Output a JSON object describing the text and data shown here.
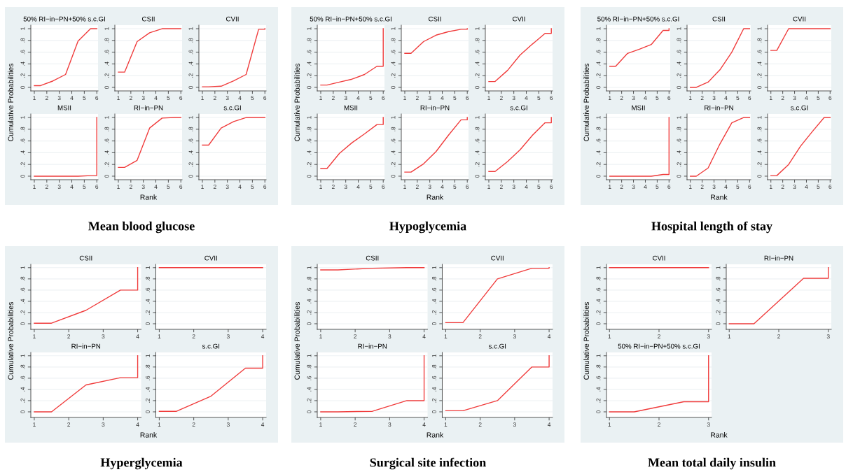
{
  "chart_data": [
    {
      "type": "line",
      "title": "50% RI−in−PN+50% s.c.GI",
      "ylabel": "Cumulative Probabilities",
      "xlabel": "Rank",
      "annotations": [
        "Mean blood glucose"
      ],
      "x": [
        1,
        1.5,
        2.5,
        3.5,
        4.5,
        5.5,
        6,
        6
      ],
      "values": [
        0.03,
        0.03,
        0.11,
        0.22,
        0.79,
        1.0,
        1.0,
        1.0
      ],
      "color": "#f03c3c",
      "xlim": [
        0.72,
        6.1
      ],
      "xticks": [
        1,
        2,
        3,
        4,
        5,
        6
      ],
      "ylim": [
        -0.06,
        1.06
      ],
      "yticks": [
        0,
        {
          "value": 0.2,
          "label": ".2"
        },
        {
          "value": 0.4,
          "label": ".4"
        },
        {
          "value": 0.6,
          "label": ".6"
        },
        {
          "value": 0.8,
          "label": ".8"
        },
        1
      ],
      "grid": "y"
    },
    {
      "type": "line",
      "title": "CSII",
      "x": [
        1,
        1.5,
        2.5,
        3.5,
        4.5,
        5.5,
        6,
        6
      ],
      "values": [
        0.26,
        0.26,
        0.78,
        0.93,
        1.0,
        1.0,
        1.0,
        1.0
      ],
      "color": "#f03c3c",
      "xlim": [
        0.72,
        6.1
      ],
      "xticks": [
        1,
        2,
        3,
        4,
        5,
        6
      ],
      "ylim": [
        -0.06,
        1.06
      ],
      "yticks": [
        0,
        {
          "value": 0.2,
          "label": ".2"
        },
        {
          "value": 0.4,
          "label": ".4"
        },
        {
          "value": 0.6,
          "label": ".6"
        },
        {
          "value": 0.8,
          "label": ".8"
        },
        1
      ],
      "grid": "y"
    },
    {
      "type": "line",
      "title": "CVII",
      "x": [
        1,
        1.5,
        2.5,
        3.5,
        4.5,
        5.5,
        6,
        6
      ],
      "values": [
        0.01,
        0.01,
        0.02,
        0.11,
        0.22,
        0.99,
        0.99,
        1.0
      ],
      "color": "#f03c3c",
      "xlim": [
        0.72,
        6.1
      ],
      "xticks": [
        1,
        2,
        3,
        4,
        5,
        6
      ],
      "ylim": [
        -0.06,
        1.06
      ],
      "yticks": [
        0,
        {
          "value": 0.2,
          "label": ".2"
        },
        {
          "value": 0.4,
          "label": ".4"
        },
        {
          "value": 0.6,
          "label": ".6"
        },
        {
          "value": 0.8,
          "label": ".8"
        },
        1
      ],
      "grid": "y"
    },
    {
      "type": "line",
      "title": "MSII",
      "x": [
        1,
        1.5,
        2.5,
        3.5,
        4.5,
        5.5,
        6,
        6
      ],
      "values": [
        0,
        0,
        0,
        0,
        0,
        0.01,
        0.01,
        1.0
      ],
      "color": "#f03c3c",
      "xlim": [
        0.72,
        6.1
      ],
      "xticks": [
        1,
        2,
        3,
        4,
        5,
        6
      ],
      "ylim": [
        -0.06,
        1.06
      ],
      "yticks": [
        0,
        {
          "value": 0.2,
          "label": ".2"
        },
        {
          "value": 0.4,
          "label": ".4"
        },
        {
          "value": 0.6,
          "label": ".6"
        },
        {
          "value": 0.8,
          "label": ".8"
        },
        1
      ],
      "grid": "y"
    },
    {
      "type": "line",
      "title": "RI−in−PN",
      "x": [
        1,
        1.5,
        2.5,
        3.5,
        4.5,
        5.5,
        6,
        6
      ],
      "values": [
        0.15,
        0.15,
        0.27,
        0.82,
        0.99,
        1.0,
        1.0,
        1.0
      ],
      "color": "#f03c3c",
      "xlim": [
        0.72,
        6.1
      ],
      "xticks": [
        1,
        2,
        3,
        4,
        5,
        6
      ],
      "ylim": [
        -0.06,
        1.06
      ],
      "yticks": [
        0,
        {
          "value": 0.2,
          "label": ".2"
        },
        {
          "value": 0.4,
          "label": ".4"
        },
        {
          "value": 0.6,
          "label": ".6"
        },
        {
          "value": 0.8,
          "label": ".8"
        },
        1
      ],
      "grid": "y"
    },
    {
      "type": "line",
      "title": "s.c.GI",
      "x": [
        1,
        1.5,
        2.5,
        3.5,
        4.5,
        5.5,
        6,
        6
      ],
      "values": [
        0.53,
        0.53,
        0.82,
        0.93,
        1.0,
        1.0,
        1.0,
        1.0
      ],
      "color": "#f03c3c",
      "xlim": [
        0.72,
        6.1
      ],
      "xticks": [
        1,
        2,
        3,
        4,
        5,
        6
      ],
      "ylim": [
        -0.06,
        1.06
      ],
      "yticks": [
        0,
        {
          "value": 0.2,
          "label": ".2"
        },
        {
          "value": 0.4,
          "label": ".4"
        },
        {
          "value": 0.6,
          "label": ".6"
        },
        {
          "value": 0.8,
          "label": ".8"
        },
        1
      ],
      "grid": "y"
    },
    {
      "type": "line",
      "title": "50% RI−in−PN+50% s.c.GI",
      "ylabel": "Cumulative Probabilities",
      "xlabel": "Rank",
      "annotations": [
        "Hypoglycemia"
      ],
      "x": [
        1,
        1.5,
        2.5,
        3.5,
        4.5,
        5.5,
        6,
        6
      ],
      "values": [
        0.04,
        0.04,
        0.09,
        0.14,
        0.22,
        0.36,
        0.36,
        1.0
      ],
      "color": "#f03c3c",
      "xlim": [
        0.72,
        6.1
      ],
      "xticks": [
        1,
        2,
        3,
        4,
        5,
        6
      ],
      "ylim": [
        -0.06,
        1.06
      ],
      "yticks": [
        0,
        {
          "value": 0.2,
          "label": ".2"
        },
        {
          "value": 0.4,
          "label": ".4"
        },
        {
          "value": 0.6,
          "label": ".6"
        },
        {
          "value": 0.8,
          "label": ".8"
        },
        1
      ],
      "grid": "y"
    },
    {
      "type": "line",
      "title": "CSII",
      "x": [
        1,
        1.5,
        2.5,
        3.5,
        4.5,
        5.5,
        6,
        6
      ],
      "values": [
        0.58,
        0.58,
        0.78,
        0.89,
        0.95,
        0.99,
        0.99,
        1.0
      ],
      "color": "#f03c3c",
      "xlim": [
        0.72,
        6.1
      ],
      "xticks": [
        1,
        2,
        3,
        4,
        5,
        6
      ],
      "ylim": [
        -0.06,
        1.06
      ],
      "yticks": [
        0,
        {
          "value": 0.2,
          "label": ".2"
        },
        {
          "value": 0.4,
          "label": ".4"
        },
        {
          "value": 0.6,
          "label": ".6"
        },
        {
          "value": 0.8,
          "label": ".8"
        },
        1
      ],
      "grid": "y"
    },
    {
      "type": "line",
      "title": "CVII",
      "x": [
        1,
        1.5,
        2.5,
        3.5,
        4.5,
        5.5,
        6,
        6
      ],
      "values": [
        0.1,
        0.1,
        0.29,
        0.55,
        0.74,
        0.92,
        0.92,
        1.0
      ],
      "color": "#f03c3c",
      "xlim": [
        0.72,
        6.1
      ],
      "xticks": [
        1,
        2,
        3,
        4,
        5,
        6
      ],
      "ylim": [
        -0.06,
        1.06
      ],
      "yticks": [
        0,
        {
          "value": 0.2,
          "label": ".2"
        },
        {
          "value": 0.4,
          "label": ".4"
        },
        {
          "value": 0.6,
          "label": ".6"
        },
        {
          "value": 0.8,
          "label": ".8"
        },
        1
      ],
      "grid": "y"
    },
    {
      "type": "line",
      "title": "MSII",
      "x": [
        1,
        1.5,
        2.5,
        3.5,
        4.5,
        5.5,
        6,
        6
      ],
      "values": [
        0.13,
        0.13,
        0.39,
        0.57,
        0.72,
        0.88,
        0.88,
        1.0
      ],
      "color": "#f03c3c",
      "xlim": [
        0.72,
        6.1
      ],
      "xticks": [
        1,
        2,
        3,
        4,
        5,
        6
      ],
      "ylim": [
        -0.06,
        1.06
      ],
      "yticks": [
        0,
        {
          "value": 0.2,
          "label": ".2"
        },
        {
          "value": 0.4,
          "label": ".4"
        },
        {
          "value": 0.6,
          "label": ".6"
        },
        {
          "value": 0.8,
          "label": ".8"
        },
        1
      ],
      "grid": "y"
    },
    {
      "type": "line",
      "title": "RI−in−PN",
      "x": [
        1,
        1.5,
        2.5,
        3.5,
        4.5,
        5.5,
        6,
        6
      ],
      "values": [
        0.07,
        0.07,
        0.21,
        0.42,
        0.7,
        0.96,
        0.96,
        1.0
      ],
      "color": "#f03c3c",
      "xlim": [
        0.72,
        6.1
      ],
      "xticks": [
        1,
        2,
        3,
        4,
        5,
        6
      ],
      "ylim": [
        -0.06,
        1.06
      ],
      "yticks": [
        0,
        {
          "value": 0.2,
          "label": ".2"
        },
        {
          "value": 0.4,
          "label": ".4"
        },
        {
          "value": 0.6,
          "label": ".6"
        },
        {
          "value": 0.8,
          "label": ".8"
        },
        1
      ],
      "grid": "y"
    },
    {
      "type": "line",
      "title": "s.c.GI",
      "x": [
        1,
        1.5,
        2.5,
        3.5,
        4.5,
        5.5,
        6,
        6
      ],
      "values": [
        0.08,
        0.08,
        0.25,
        0.45,
        0.7,
        0.91,
        0.91,
        1.0
      ],
      "color": "#f03c3c",
      "xlim": [
        0.72,
        6.1
      ],
      "xticks": [
        1,
        2,
        3,
        4,
        5,
        6
      ],
      "ylim": [
        -0.06,
        1.06
      ],
      "yticks": [
        0,
        {
          "value": 0.2,
          "label": ".2"
        },
        {
          "value": 0.4,
          "label": ".4"
        },
        {
          "value": 0.6,
          "label": ".6"
        },
        {
          "value": 0.8,
          "label": ".8"
        },
        1
      ],
      "grid": "y"
    },
    {
      "type": "line",
      "title": "50% RI−in−PN+50% s.c.GI",
      "ylabel": "Cumulative Probabilities",
      "xlabel": "Rank",
      "annotations": [
        "Hospital length of stay"
      ],
      "x": [
        1,
        1.5,
        2.5,
        3.5,
        4.5,
        5.5,
        6,
        6
      ],
      "values": [
        0.36,
        0.36,
        0.58,
        0.65,
        0.73,
        0.97,
        0.97,
        1.0
      ],
      "color": "#f03c3c",
      "xlim": [
        0.72,
        6.1
      ],
      "xticks": [
        1,
        2,
        3,
        4,
        5,
        6
      ],
      "ylim": [
        -0.06,
        1.06
      ],
      "yticks": [
        0,
        {
          "value": 0.2,
          "label": ".2"
        },
        {
          "value": 0.4,
          "label": ".4"
        },
        {
          "value": 0.6,
          "label": ".6"
        },
        {
          "value": 0.8,
          "label": ".8"
        },
        1
      ],
      "grid": "y"
    },
    {
      "type": "line",
      "title": "CSII",
      "x": [
        1,
        1.5,
        2.5,
        3.5,
        4.5,
        5.5,
        6,
        6
      ],
      "values": [
        0,
        0,
        0.09,
        0.3,
        0.6,
        1.0,
        1.0,
        1.0
      ],
      "color": "#f03c3c",
      "xlim": [
        0.72,
        6.1
      ],
      "xticks": [
        1,
        2,
        3,
        4,
        5,
        6
      ],
      "ylim": [
        -0.06,
        1.06
      ],
      "yticks": [
        0,
        {
          "value": 0.2,
          "label": ".2"
        },
        {
          "value": 0.4,
          "label": ".4"
        },
        {
          "value": 0.6,
          "label": ".6"
        },
        {
          "value": 0.8,
          "label": ".8"
        },
        1
      ],
      "grid": "y"
    },
    {
      "type": "line",
      "title": "CVII",
      "x": [
        1,
        1.5,
        2.5,
        3.5,
        4.5,
        5.5,
        6,
        6
      ],
      "values": [
        0.63,
        0.63,
        1.0,
        1.0,
        1.0,
        1.0,
        1.0,
        1.0
      ],
      "color": "#f03c3c",
      "xlim": [
        0.72,
        6.1
      ],
      "xticks": [
        1,
        2,
        3,
        4,
        5,
        6
      ],
      "ylim": [
        -0.06,
        1.06
      ],
      "yticks": [
        0,
        {
          "value": 0.2,
          "label": ".2"
        },
        {
          "value": 0.4,
          "label": ".4"
        },
        {
          "value": 0.6,
          "label": ".6"
        },
        {
          "value": 0.8,
          "label": ".8"
        },
        1
      ],
      "grid": "y"
    },
    {
      "type": "line",
      "title": "MSII",
      "x": [
        1,
        1.5,
        2.5,
        3.5,
        4.5,
        5.5,
        6,
        6
      ],
      "values": [
        0,
        0,
        0,
        0,
        0,
        0.03,
        0.03,
        1.0
      ],
      "color": "#f03c3c",
      "xlim": [
        0.72,
        6.1
      ],
      "xticks": [
        1,
        2,
        3,
        4,
        5,
        6
      ],
      "ylim": [
        -0.06,
        1.06
      ],
      "yticks": [
        0,
        {
          "value": 0.2,
          "label": ".2"
        },
        {
          "value": 0.4,
          "label": ".4"
        },
        {
          "value": 0.6,
          "label": ".6"
        },
        {
          "value": 0.8,
          "label": ".8"
        },
        1
      ],
      "grid": "y"
    },
    {
      "type": "line",
      "title": "RI−in−PN",
      "x": [
        1,
        1.5,
        2.5,
        3.5,
        4.5,
        5.5,
        6,
        6
      ],
      "values": [
        0,
        0,
        0.14,
        0.55,
        0.91,
        1.0,
        1.0,
        1.0
      ],
      "color": "#f03c3c",
      "xlim": [
        0.72,
        6.1
      ],
      "xticks": [
        1,
        2,
        3,
        4,
        5,
        6
      ],
      "ylim": [
        -0.06,
        1.06
      ],
      "yticks": [
        0,
        {
          "value": 0.2,
          "label": ".2"
        },
        {
          "value": 0.4,
          "label": ".4"
        },
        {
          "value": 0.6,
          "label": ".6"
        },
        {
          "value": 0.8,
          "label": ".8"
        },
        1
      ],
      "grid": "y"
    },
    {
      "type": "line",
      "title": "s.c.GI",
      "x": [
        1,
        1.5,
        2.5,
        3.5,
        4.5,
        5.5,
        6,
        6
      ],
      "values": [
        0.01,
        0.01,
        0.2,
        0.51,
        0.76,
        1.0,
        1.0,
        1.0
      ],
      "color": "#f03c3c",
      "xlim": [
        0.72,
        6.1
      ],
      "xticks": [
        1,
        2,
        3,
        4,
        5,
        6
      ],
      "ylim": [
        -0.06,
        1.06
      ],
      "yticks": [
        0,
        {
          "value": 0.2,
          "label": ".2"
        },
        {
          "value": 0.4,
          "label": ".4"
        },
        {
          "value": 0.6,
          "label": ".6"
        },
        {
          "value": 0.8,
          "label": ".8"
        },
        1
      ],
      "grid": "y"
    },
    {
      "type": "line",
      "title": "CSII",
      "ylabel": "Cumulative Probabilities",
      "xlabel": "Rank",
      "annotations": [
        "Hyperglycemia"
      ],
      "x": [
        1,
        1.5,
        2.5,
        3.5,
        4,
        4
      ],
      "values": [
        0.01,
        0.01,
        0.24,
        0.6,
        0.6,
        1.0
      ],
      "color": "#f03c3c",
      "xlim": [
        0.9,
        4.1
      ],
      "xticks": [
        1,
        2,
        3,
        4
      ],
      "ylim": [
        -0.1,
        1.06
      ],
      "yticks": [
        0,
        {
          "value": 0.2,
          "label": ".2"
        },
        {
          "value": 0.4,
          "label": ".4"
        },
        {
          "value": 0.6,
          "label": ".6"
        },
        {
          "value": 0.8,
          "label": ".8"
        },
        1
      ],
      "grid": "y"
    },
    {
      "type": "line",
      "title": "CVII",
      "x": [
        1,
        1.5,
        2.5,
        3.5,
        4,
        4
      ],
      "values": [
        1.0,
        1.0,
        1.0,
        1.0,
        1.0,
        1.0
      ],
      "color": "#f03c3c",
      "xlim": [
        0.9,
        4.1
      ],
      "xticks": [
        1,
        2,
        3,
        4
      ],
      "ylim": [
        -0.1,
        1.06
      ],
      "yticks": [
        0,
        {
          "value": 0.2,
          "label": ".2"
        },
        {
          "value": 0.4,
          "label": ".4"
        },
        {
          "value": 0.6,
          "label": ".6"
        },
        {
          "value": 0.8,
          "label": ".8"
        },
        1
      ],
      "grid": "y"
    },
    {
      "type": "line",
      "title": "RI−in−PN",
      "x": [
        1,
        1.5,
        2.5,
        3.5,
        4,
        4
      ],
      "values": [
        0,
        0,
        0.48,
        0.61,
        0.61,
        1.0
      ],
      "color": "#f03c3c",
      "xlim": [
        0.9,
        4.1
      ],
      "xticks": [
        1,
        2,
        3,
        4
      ],
      "ylim": [
        -0.1,
        1.06
      ],
      "yticks": [
        0,
        {
          "value": 0.2,
          "label": ".2"
        },
        {
          "value": 0.4,
          "label": ".4"
        },
        {
          "value": 0.6,
          "label": ".6"
        },
        {
          "value": 0.8,
          "label": ".8"
        },
        1
      ],
      "grid": "y"
    },
    {
      "type": "line",
      "title": "s.c.GI",
      "x": [
        1,
        1.5,
        2.5,
        3.5,
        4,
        4
      ],
      "values": [
        0.01,
        0.01,
        0.28,
        0.78,
        0.78,
        1.0
      ],
      "color": "#f03c3c",
      "xlim": [
        0.9,
        4.1
      ],
      "xticks": [
        1,
        2,
        3,
        4
      ],
      "ylim": [
        -0.1,
        1.06
      ],
      "yticks": [
        0,
        {
          "value": 0.2,
          "label": ".2"
        },
        {
          "value": 0.4,
          "label": ".4"
        },
        {
          "value": 0.6,
          "label": ".6"
        },
        {
          "value": 0.8,
          "label": ".8"
        },
        1
      ],
      "grid": "y"
    },
    {
      "type": "line",
      "title": "CSII",
      "ylabel": "Cumulative Probabilities",
      "xlabel": "Rank",
      "annotations": [
        "Surgical site infection"
      ],
      "x": [
        1,
        1.5,
        2.5,
        3.5,
        4,
        4
      ],
      "values": [
        0.96,
        0.96,
        0.99,
        1.0,
        1.0,
        1.0
      ],
      "color": "#f03c3c",
      "xlim": [
        0.9,
        4.1
      ],
      "xticks": [
        1,
        2,
        3,
        4
      ],
      "ylim": [
        -0.1,
        1.06
      ],
      "yticks": [
        0,
        {
          "value": 0.2,
          "label": ".2"
        },
        {
          "value": 0.4,
          "label": ".4"
        },
        {
          "value": 0.6,
          "label": ".6"
        },
        {
          "value": 0.8,
          "label": ".8"
        },
        1
      ],
      "grid": "y"
    },
    {
      "type": "line",
      "title": "CVII",
      "x": [
        1,
        1.5,
        2.5,
        3.5,
        4,
        4
      ],
      "values": [
        0.02,
        0.02,
        0.8,
        0.99,
        0.99,
        1.0
      ],
      "color": "#f03c3c",
      "xlim": [
        0.9,
        4.1
      ],
      "xticks": [
        1,
        2,
        3,
        4
      ],
      "ylim": [
        -0.1,
        1.06
      ],
      "yticks": [
        0,
        {
          "value": 0.2,
          "label": ".2"
        },
        {
          "value": 0.4,
          "label": ".4"
        },
        {
          "value": 0.6,
          "label": ".6"
        },
        {
          "value": 0.8,
          "label": ".8"
        },
        1
      ],
      "grid": "y"
    },
    {
      "type": "line",
      "title": "RI−in−PN",
      "x": [
        1,
        1.5,
        2.5,
        3.5,
        4,
        4
      ],
      "values": [
        0,
        0,
        0.01,
        0.2,
        0.2,
        1.0
      ],
      "color": "#f03c3c",
      "xlim": [
        0.9,
        4.1
      ],
      "xticks": [
        1,
        2,
        3,
        4
      ],
      "ylim": [
        -0.1,
        1.06
      ],
      "yticks": [
        0,
        {
          "value": 0.2,
          "label": ".2"
        },
        {
          "value": 0.4,
          "label": ".4"
        },
        {
          "value": 0.6,
          "label": ".6"
        },
        {
          "value": 0.8,
          "label": ".8"
        },
        1
      ],
      "grid": "y"
    },
    {
      "type": "line",
      "title": "s.c.GI",
      "x": [
        1,
        1.5,
        2.5,
        3.5,
        4,
        4
      ],
      "values": [
        0.02,
        0.02,
        0.2,
        0.8,
        0.8,
        1.0
      ],
      "color": "#f03c3c",
      "xlim": [
        0.9,
        4.1
      ],
      "xticks": [
        1,
        2,
        3,
        4
      ],
      "ylim": [
        -0.1,
        1.06
      ],
      "yticks": [
        0,
        {
          "value": 0.2,
          "label": ".2"
        },
        {
          "value": 0.4,
          "label": ".4"
        },
        {
          "value": 0.6,
          "label": ".6"
        },
        {
          "value": 0.8,
          "label": ".8"
        },
        1
      ],
      "grid": "y"
    },
    {
      "type": "line",
      "title": "CVII",
      "ylabel": "Cumulative Probabilities",
      "xlabel": "Rank",
      "annotations": [
        "Mean total daily insulin"
      ],
      "x": [
        1,
        1.5,
        2.5,
        3,
        3
      ],
      "values": [
        1.0,
        1.0,
        1.0,
        1.0,
        1.0
      ],
      "color": "#f03c3c",
      "xlim": [
        0.94,
        3.06
      ],
      "xticks": [
        1,
        2,
        3
      ],
      "ylim": [
        -0.1,
        1.06
      ],
      "yticks": [
        0,
        {
          "value": 0.2,
          "label": ".2"
        },
        {
          "value": 0.4,
          "label": ".4"
        },
        {
          "value": 0.6,
          "label": ".6"
        },
        {
          "value": 0.8,
          "label": ".8"
        },
        1
      ],
      "grid": "y"
    },
    {
      "type": "line",
      "title": "RI−in−PN",
      "x": [
        1,
        1.5,
        2.5,
        3,
        3
      ],
      "values": [
        0,
        0,
        0.81,
        0.81,
        1.0
      ],
      "color": "#f03c3c",
      "xlim": [
        0.94,
        3.06
      ],
      "xticks": [
        1,
        2,
        3
      ],
      "ylim": [
        -0.1,
        1.06
      ],
      "yticks": [
        0,
        {
          "value": 0.2,
          "label": ".2"
        },
        {
          "value": 0.4,
          "label": ".4"
        },
        {
          "value": 0.6,
          "label": ".6"
        },
        {
          "value": 0.8,
          "label": ".8"
        },
        1
      ],
      "grid": "y"
    },
    {
      "type": "line",
      "title": "50% RI−in−PN+50% s.c.GI",
      "x": [
        1,
        1.5,
        2.5,
        3,
        3
      ],
      "values": [
        0,
        0,
        0.18,
        0.18,
        1.0
      ],
      "color": "#f03c3c",
      "xlim": [
        0.94,
        3.06
      ],
      "xticks": [
        1,
        2,
        3
      ],
      "ylim": [
        -0.1,
        1.06
      ],
      "yticks": [
        0,
        {
          "value": 0.2,
          "label": ".2"
        },
        {
          "value": 0.4,
          "label": ".4"
        },
        {
          "value": 0.6,
          "label": ".6"
        },
        {
          "value": 0.8,
          "label": ".8"
        },
        1
      ],
      "grid": "y"
    }
  ]
}
